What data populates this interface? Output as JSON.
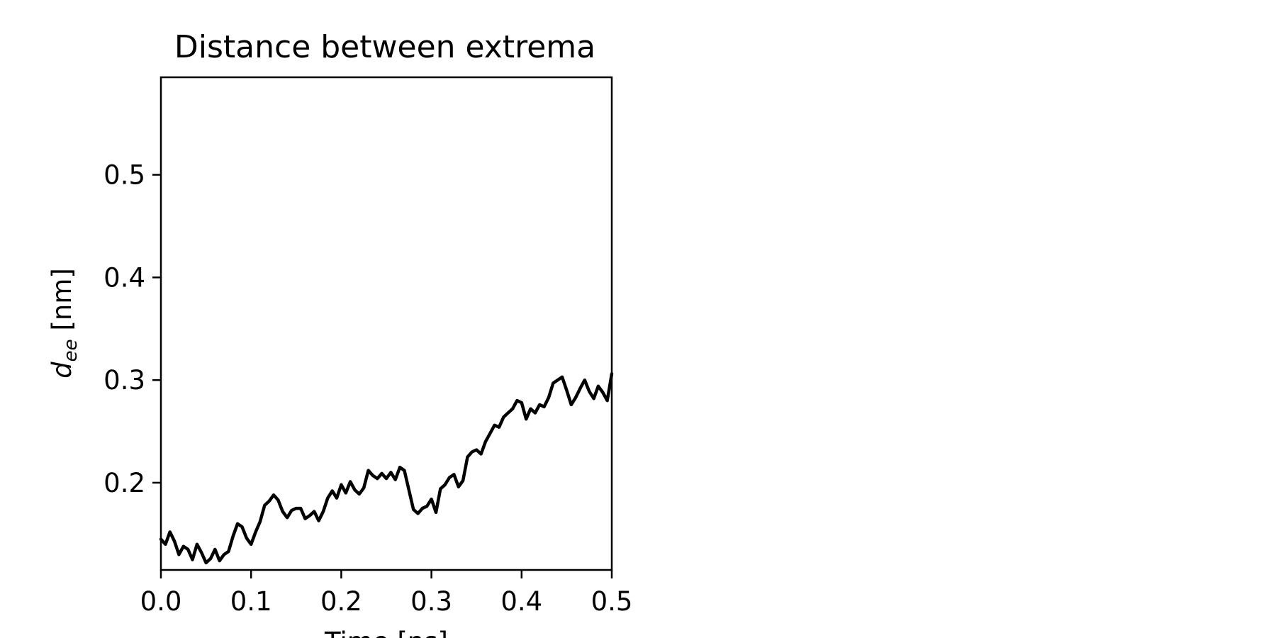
{
  "chart_data": {
    "type": "line",
    "title": "Distance between extrema",
    "xlabel": "Time [ns]",
    "ylabel": {
      "symbol": "d",
      "subscript": "ee",
      "unit": " [nm]"
    },
    "xlim": [
      0.0,
      0.5
    ],
    "ylim": [
      0.115,
      0.595
    ],
    "xticks": [
      0.0,
      0.1,
      0.2,
      0.3,
      0.4,
      0.5
    ],
    "xtick_labels": [
      "0.0",
      "0.1",
      "0.2",
      "0.3",
      "0.4",
      "0.5"
    ],
    "yticks": [
      0.2,
      0.3,
      0.4,
      0.5
    ],
    "ytick_labels": [
      "0.2",
      "0.3",
      "0.4",
      "0.5"
    ],
    "grid": false,
    "series": [
      {
        "color": "#000000",
        "x": [
          0.0,
          0.005,
          0.01,
          0.015,
          0.02,
          0.025,
          0.03,
          0.035,
          0.04,
          0.045,
          0.05,
          0.055,
          0.06,
          0.065,
          0.07,
          0.075,
          0.08,
          0.085,
          0.09,
          0.095,
          0.1,
          0.105,
          0.11,
          0.115,
          0.12,
          0.125,
          0.13,
          0.135,
          0.14,
          0.145,
          0.15,
          0.155,
          0.16,
          0.165,
          0.17,
          0.175,
          0.18,
          0.185,
          0.19,
          0.195,
          0.2,
          0.205,
          0.21,
          0.215,
          0.22,
          0.225,
          0.23,
          0.235,
          0.24,
          0.245,
          0.25,
          0.255,
          0.26,
          0.265,
          0.27,
          0.275,
          0.28,
          0.285,
          0.29,
          0.295,
          0.3,
          0.305,
          0.31,
          0.315,
          0.32,
          0.325,
          0.33,
          0.335,
          0.34,
          0.345,
          0.35,
          0.355,
          0.36,
          0.365,
          0.37,
          0.375,
          0.38,
          0.385,
          0.39,
          0.395,
          0.4,
          0.405,
          0.41,
          0.415,
          0.42,
          0.425,
          0.43,
          0.435,
          0.44,
          0.445,
          0.45,
          0.455,
          0.46,
          0.465,
          0.47,
          0.475,
          0.48,
          0.485,
          0.49,
          0.495,
          0.5
        ],
        "y": [
          0.145,
          0.14,
          0.152,
          0.143,
          0.13,
          0.138,
          0.135,
          0.125,
          0.14,
          0.132,
          0.122,
          0.126,
          0.135,
          0.124,
          0.13,
          0.133,
          0.148,
          0.16,
          0.157,
          0.146,
          0.14,
          0.152,
          0.162,
          0.178,
          0.182,
          0.188,
          0.183,
          0.172,
          0.166,
          0.173,
          0.175,
          0.175,
          0.165,
          0.168,
          0.172,
          0.163,
          0.172,
          0.185,
          0.192,
          0.185,
          0.198,
          0.19,
          0.201,
          0.193,
          0.189,
          0.195,
          0.212,
          0.207,
          0.204,
          0.209,
          0.204,
          0.21,
          0.203,
          0.215,
          0.212,
          0.193,
          0.174,
          0.17,
          0.175,
          0.177,
          0.184,
          0.171,
          0.194,
          0.198,
          0.205,
          0.208,
          0.196,
          0.202,
          0.225,
          0.23,
          0.232,
          0.228,
          0.24,
          0.248,
          0.256,
          0.254,
          0.264,
          0.268,
          0.272,
          0.28,
          0.278,
          0.262,
          0.272,
          0.268,
          0.276,
          0.274,
          0.283,
          0.297,
          0.3,
          0.303,
          0.29,
          0.276,
          0.283,
          0.292,
          0.3,
          0.289,
          0.282,
          0.294,
          0.288,
          0.28,
          0.306
        ]
      }
    ]
  }
}
